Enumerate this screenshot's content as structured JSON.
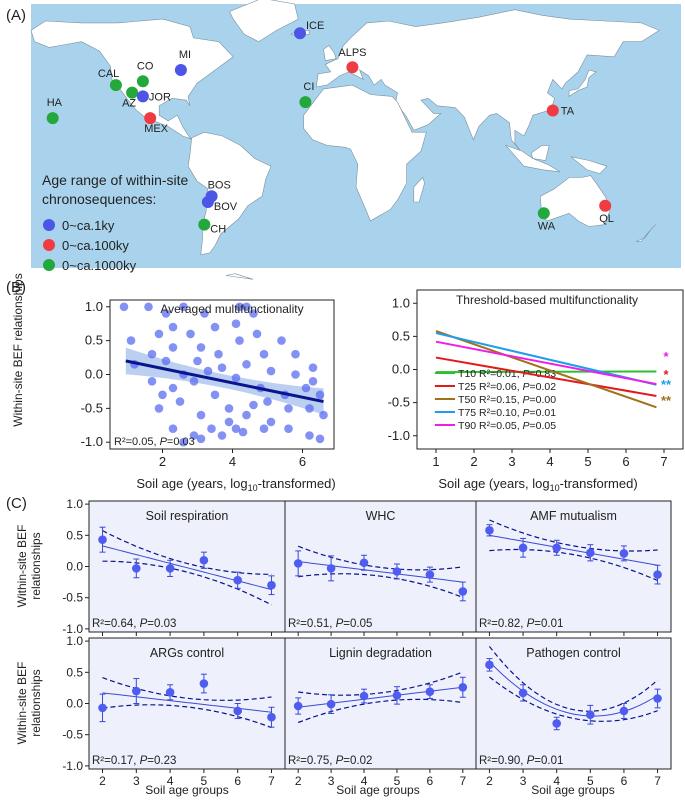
{
  "colors": {
    "ocean": "#a9d3ec",
    "land": "#ffffff",
    "blue_point": "#4b55e6",
    "red_point": "#ef3b41",
    "green_point": "#23a83c",
    "panel_c_bg": "#eef0fb",
    "series_blue": "#3b49d8"
  },
  "panel_a": {
    "label": "(A)",
    "legend_title_1": "Age range of within-site",
    "legend_title_2": "chronosequences:",
    "legend": [
      {
        "label": "0~ca.1ky",
        "color": "blue_point"
      },
      {
        "label": "0~ca.100ky",
        "color": "red_point"
      },
      {
        "label": "0~ca.1000ky",
        "color": "green_point"
      }
    ],
    "sites": [
      {
        "name": "ICE",
        "group": "blue_point",
        "lon": -19,
        "lat": 64.5
      },
      {
        "name": "MI",
        "group": "blue_point",
        "lon": -85,
        "lat": 45
      },
      {
        "name": "CO",
        "group": "green_point",
        "lon": -106,
        "lat": 39
      },
      {
        "name": "CAL",
        "group": "green_point",
        "lon": -121,
        "lat": 37
      },
      {
        "name": "AZ",
        "group": "green_point",
        "lon": -112,
        "lat": 33
      },
      {
        "name": "JOR",
        "group": "blue_point",
        "lon": -106,
        "lat": 31
      },
      {
        "name": "HA",
        "group": "green_point",
        "lon": -156,
        "lat": 19.5
      },
      {
        "name": "MEX",
        "group": "red_point",
        "lon": -102,
        "lat": 19.5
      },
      {
        "name": "ALPS",
        "group": "red_point",
        "lon": 10,
        "lat": 46.5
      },
      {
        "name": "CI",
        "group": "green_point",
        "lon": -16,
        "lat": 28
      },
      {
        "name": "TA",
        "group": "red_point",
        "lon": 121,
        "lat": 23.5
      },
      {
        "name": "BOS",
        "group": "blue_point",
        "lon": -68,
        "lat": -22
      },
      {
        "name": "BOV",
        "group": "blue_point",
        "lon": -70,
        "lat": -25
      },
      {
        "name": "CH",
        "group": "green_point",
        "lon": -72,
        "lat": -37
      },
      {
        "name": "WA",
        "group": "green_point",
        "lon": 116,
        "lat": -31
      },
      {
        "name": "QL",
        "group": "red_point",
        "lon": 150,
        "lat": -27
      }
    ]
  },
  "panel_b": {
    "label": "(B)",
    "ylabel_1": "Within-site BEF relationships",
    "left": {
      "title": "Averaged multifunctionality",
      "xlabel": "Soil age (years, log",
      "xlabel_sub": "10",
      "xlabel_end": "-transformed)",
      "stat_r2": "R²=0.05,",
      "stat_p": "P",
      "stat_pval": "=0.03"
    },
    "right": {
      "title": "Threshold-based multifunctionality",
      "xlabel": "Soil age (years, log",
      "xlabel_sub": "10",
      "xlabel_end": "-transformed)"
    }
  },
  "panel_c": {
    "label": "(C)",
    "ylabel_1": "Within-site BEF",
    "ylabel_2": "relationships",
    "xlabel": "Soil age groups"
  },
  "chart_data": [
    {
      "type": "scatter",
      "title": "Averaged multifunctionality",
      "xlabel": "Soil age (years, log10-transformed)",
      "ylabel": "Within-site BEF relationships",
      "xlim": [
        0.5,
        6.9
      ],
      "ylim": [
        -1.1,
        1.1
      ],
      "xticks": [
        2,
        4,
        6
      ],
      "yticks": [
        -1.0,
        -0.5,
        0.0,
        0.5,
        1.0
      ],
      "fit": {
        "x": [
          0.95,
          6.6
        ],
        "y": [
          0.2,
          -0.4
        ]
      },
      "annotation": "R²=0.05, P=0.03",
      "points": [
        [
          0.9,
          1.0
        ],
        [
          1.6,
          1.0
        ],
        [
          2.1,
          0.9
        ],
        [
          2.6,
          1.0
        ],
        [
          3.2,
          0.9
        ],
        [
          4.2,
          1.0
        ],
        [
          4.4,
          1.0
        ],
        [
          4.6,
          0.9
        ],
        [
          1.1,
          0.5
        ],
        [
          1.9,
          0.6
        ],
        [
          2.3,
          0.7
        ],
        [
          2.8,
          0.6
        ],
        [
          3.5,
          0.7
        ],
        [
          4.1,
          0.75
        ],
        [
          4.7,
          0.6
        ],
        [
          5.4,
          0.5
        ],
        [
          1.7,
          0.3
        ],
        [
          2.3,
          0.4
        ],
        [
          3.1,
          0.4
        ],
        [
          3.6,
          0.3
        ],
        [
          4.2,
          0.5
        ],
        [
          4.9,
          0.3
        ],
        [
          5.8,
          0.3
        ],
        [
          6.3,
          0.1
        ],
        [
          1.2,
          0.15
        ],
        [
          2.1,
          0.2
        ],
        [
          2.6,
          0.0
        ],
        [
          3.0,
          0.2
        ],
        [
          3.7,
          0.1
        ],
        [
          4.4,
          0.15
        ],
        [
          5.1,
          0.05
        ],
        [
          5.8,
          0.0
        ],
        [
          6.3,
          -0.1
        ],
        [
          1.7,
          -0.1
        ],
        [
          2.3,
          -0.2
        ],
        [
          2.9,
          -0.1
        ],
        [
          3.5,
          -0.3
        ],
        [
          4.1,
          -0.05
        ],
        [
          4.8,
          -0.2
        ],
        [
          5.5,
          -0.3
        ],
        [
          6.1,
          -0.2
        ],
        [
          6.5,
          -0.3
        ],
        [
          1.9,
          -0.5
        ],
        [
          2.5,
          -0.4
        ],
        [
          3.1,
          -0.6
        ],
        [
          3.9,
          -0.5
        ],
        [
          4.4,
          -0.6
        ],
        [
          5.0,
          -0.4
        ],
        [
          5.6,
          -0.5
        ],
        [
          6.2,
          -0.5
        ],
        [
          6.6,
          -0.6
        ],
        [
          2.3,
          -0.8
        ],
        [
          2.9,
          -0.9
        ],
        [
          3.4,
          -0.8
        ],
        [
          3.9,
          -0.7
        ],
        [
          4.3,
          -0.85
        ],
        [
          4.9,
          -0.8
        ],
        [
          5.6,
          -0.8
        ],
        [
          6.2,
          -0.9
        ],
        [
          6.5,
          -0.95
        ],
        [
          2.6,
          -1.0
        ],
        [
          3.1,
          -0.95
        ],
        [
          3.7,
          -0.9
        ],
        [
          4.1,
          -0.8
        ],
        [
          5.1,
          -0.7
        ],
        [
          3.3,
          0.05
        ],
        [
          2.0,
          -0.3
        ],
        [
          4.6,
          -0.45
        ]
      ]
    },
    {
      "type": "line",
      "title": "Threshold-based multifunctionality",
      "xlabel": "Soil age (years, log10-transformed)",
      "xlim": [
        0.5,
        7.5
      ],
      "ylim": [
        -1.2,
        1.2
      ],
      "xticks": [
        1,
        2,
        3,
        4,
        5,
        6,
        7
      ],
      "yticks": [
        -1.0,
        -0.5,
        0.0,
        0.5,
        1.0
      ],
      "x": [
        1,
        6.8
      ],
      "series": [
        {
          "name": "T10",
          "color": "#2dbf2d",
          "y": [
            -0.04,
            -0.03
          ],
          "stat": "R²=0.01, P=0.83",
          "sig": ""
        },
        {
          "name": "T25",
          "color": "#e31a1c",
          "y": [
            0.18,
            -0.4
          ],
          "stat": "R²=0.06, P=0.02",
          "sig": "*"
        },
        {
          "name": "T50",
          "color": "#a0701c",
          "y": [
            0.58,
            -0.57
          ],
          "stat": "R²=0.15, P=0.00",
          "sig": "**"
        },
        {
          "name": "T75",
          "color": "#1e9ee8",
          "y": [
            0.55,
            -0.23
          ],
          "stat": "R²=0.10, P=0.01",
          "sig": "**"
        },
        {
          "name": "T90",
          "color": "#ee1ee8",
          "y": [
            0.42,
            -0.22
          ],
          "stat": "R²=0.05, P=0.05",
          "sig": "*"
        }
      ]
    },
    {
      "type": "scatter",
      "title": "Soil respiration",
      "x": [
        2,
        3,
        4,
        5,
        6,
        7
      ],
      "y": [
        0.43,
        -0.03,
        -0.03,
        0.1,
        -0.22,
        -0.3
      ],
      "err": [
        0.2,
        0.15,
        0.13,
        0.13,
        0.13,
        0.15
      ],
      "fit": "linear",
      "fit_y": [
        0.33,
        -0.37
      ],
      "annotation": "R²=0.64, P=0.03",
      "ylim": [
        -1.05,
        1.05
      ]
    },
    {
      "type": "scatter",
      "title": "WHC",
      "x": [
        2,
        3,
        4,
        5,
        6,
        7
      ],
      "y": [
        0.05,
        -0.03,
        0.06,
        -0.08,
        -0.13,
        -0.4
      ],
      "err": [
        0.2,
        0.2,
        0.12,
        0.12,
        0.12,
        0.15
      ],
      "fit": "linear",
      "fit_y": [
        0.08,
        -0.25
      ],
      "annotation": "R²=0.51, P=0.05",
      "ylim": [
        -1.05,
        1.05
      ]
    },
    {
      "type": "scatter",
      "title": "AMF mutualism",
      "x": [
        2,
        3,
        4,
        5,
        6,
        7
      ],
      "y": [
        0.58,
        0.3,
        0.3,
        0.22,
        0.21,
        -0.13
      ],
      "err": [
        0.09,
        0.15,
        0.12,
        0.13,
        0.12,
        0.15
      ],
      "fit": "linear",
      "fit_y": [
        0.5,
        0.02
      ],
      "annotation": "R²=0.82, P=0.01",
      "ylim": [
        -1.05,
        1.05
      ]
    },
    {
      "type": "scatter",
      "title": "ARGs control",
      "x": [
        2,
        3,
        4,
        5,
        6,
        7
      ],
      "y": [
        -0.07,
        0.2,
        0.18,
        0.32,
        -0.12,
        -0.22
      ],
      "err": [
        0.22,
        0.2,
        0.12,
        0.15,
        0.12,
        0.16
      ],
      "fit": "linear",
      "fit_y": [
        0.17,
        -0.14
      ],
      "annotation": "R²=0.17, P=0.23",
      "ylim": [
        -1.05,
        1.05
      ]
    },
    {
      "type": "scatter",
      "title": "Lignin degradation",
      "x": [
        2,
        3,
        4,
        5,
        6,
        7
      ],
      "y": [
        -0.04,
        -0.01,
        0.12,
        0.13,
        0.19,
        0.26
      ],
      "err": [
        0.13,
        0.15,
        0.11,
        0.14,
        0.11,
        0.16
      ],
      "fit": "linear",
      "fit_y": [
        -0.06,
        0.26
      ],
      "annotation": "R²=0.75, P=0.02",
      "ylim": [
        -1.05,
        1.05
      ]
    },
    {
      "type": "scatter",
      "title": "Pathogen control",
      "x": [
        2,
        3,
        4,
        5,
        6,
        7
      ],
      "y": [
        0.62,
        0.17,
        -0.32,
        -0.18,
        -0.12,
        0.08
      ],
      "err": [
        0.1,
        0.13,
        0.1,
        0.15,
        0.12,
        0.15
      ],
      "fit": "quadratic",
      "fit_quad": [
        0.0911,
        -0.9279,
        2.1614
      ],
      "annotation": "R²=0.90, P=0.01",
      "ylim": [
        -1.05,
        1.05
      ]
    }
  ]
}
